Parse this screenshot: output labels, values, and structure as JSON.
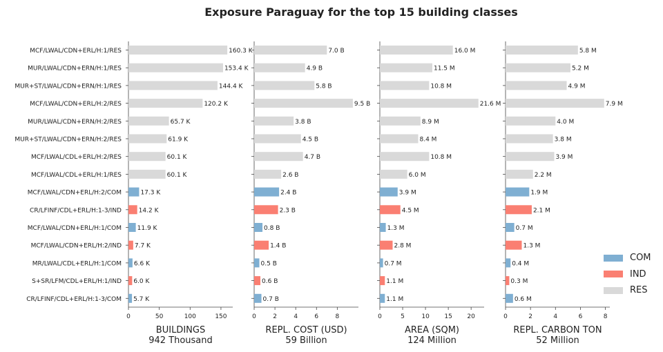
{
  "chart_data": {
    "type": "bar",
    "orientation": "horizontal",
    "title": "Exposure Paraguay for the top 15 building classes",
    "categories": [
      "MCF/LWAL/CDN+ERL/H:1/RES",
      "MUR/LWAL/CDN+ERN/H:1/RES",
      "MUR+ST/LWAL/CDN+ERN/H:1/RES",
      "MCF/LWAL/CDN+ERL/H:2/RES",
      "MUR/LWAL/CDN+ERN/H:2/RES",
      "MUR+ST/LWAL/CDN+ERN/H:2/RES",
      "MCF/LWAL/CDL+ERL/H:2/RES",
      "MCF/LWAL/CDL+ERL/H:1/RES",
      "MCF/LWAL/CDN+ERL/H:2/COM",
      "CR/LFINF/CDL+ERL/H:1-3/IND",
      "MCF/LWAL/CDN+ERL/H:1/COM",
      "MCF/LWAL/CDN+ERL/H:2/IND",
      "MR/LWAL/CDL+ERL/H:1/COM",
      "S+SR/LFM/CDL+ERL/H:1/IND",
      "CR/LFINF/CDL+ERL/H:1-3/COM"
    ],
    "occupancy": [
      "RES",
      "RES",
      "RES",
      "RES",
      "RES",
      "RES",
      "RES",
      "RES",
      "COM",
      "IND",
      "COM",
      "IND",
      "COM",
      "IND",
      "COM"
    ],
    "colors": {
      "COM": "#7fafd2",
      "IND": "#fa7f72",
      "RES": "#d9d9d9"
    },
    "panels": [
      {
        "xlabel": "BUILDINGS",
        "total": "942 Thousand",
        "xlim": [
          0,
          168
        ],
        "ticks": [
          0,
          50,
          100,
          150
        ],
        "values": [
          160.3,
          153.4,
          144.4,
          120.2,
          65.7,
          61.9,
          60.1,
          60.1,
          17.3,
          14.2,
          11.9,
          7.7,
          6.6,
          6.0,
          5.7
        ],
        "labels": [
          "160.3 K",
          "153.4 K",
          "144.4 K",
          "120.2 K",
          "65.7 K",
          "61.9 K",
          "60.1 K",
          "60.1 K",
          "17.3 K",
          "14.2 K",
          "11.9 K",
          "7.7 K",
          "6.6 K",
          "6.0 K",
          "5.7 K"
        ]
      },
      {
        "xlabel": "REPL. COST (USD)",
        "total": "59 Billion",
        "xlim": [
          0,
          9.97
        ],
        "ticks": [
          0,
          2,
          4,
          6,
          8
        ],
        "values": [
          7.0,
          4.9,
          5.8,
          9.5,
          3.8,
          4.5,
          4.7,
          2.6,
          2.4,
          2.3,
          0.8,
          1.4,
          0.5,
          0.6,
          0.7
        ],
        "labels": [
          "7.0 B",
          "4.9 B",
          "5.8 B",
          "9.5 B",
          "3.8 B",
          "4.5 B",
          "4.7 B",
          "2.6 B",
          "2.4 B",
          "2.3 B",
          "0.8 B",
          "1.4 B",
          "0.5 B",
          "0.6 B",
          "0.7 B"
        ]
      },
      {
        "xlabel": "AREA (SQM)",
        "total": "124 Million",
        "xlim": [
          0,
          22.7
        ],
        "ticks": [
          0,
          5,
          10,
          15,
          20
        ],
        "values": [
          16.0,
          11.5,
          10.8,
          21.6,
          8.9,
          8.4,
          10.8,
          6.0,
          3.9,
          4.5,
          1.3,
          2.8,
          0.7,
          1.1,
          1.1
        ],
        "labels": [
          "16.0 M",
          "11.5 M",
          "10.8 M",
          "21.6 M",
          "8.9 M",
          "8.4 M",
          "10.8 M",
          "6.0 M",
          "3.9 M",
          "4.5 M",
          "1.3 M",
          "2.8 M",
          "0.7 M",
          "1.1 M",
          "1.1 M"
        ]
      },
      {
        "xlabel": "REPL. CARBON TON",
        "total": "52 Million",
        "xlim": [
          0,
          8.3
        ],
        "ticks": [
          0,
          2,
          4,
          6,
          8
        ],
        "values": [
          5.8,
          5.2,
          4.9,
          7.9,
          4.0,
          3.8,
          3.9,
          2.2,
          1.9,
          2.1,
          0.7,
          1.3,
          0.4,
          0.3,
          0.6
        ],
        "labels": [
          "5.8 M",
          "5.2 M",
          "4.9 M",
          "7.9 M",
          "4.0 M",
          "3.8 M",
          "3.9 M",
          "2.2 M",
          "1.9 M",
          "2.1 M",
          "0.7 M",
          "1.3 M",
          "0.4 M",
          "0.3 M",
          "0.6 M"
        ]
      }
    ],
    "legend": {
      "position": "right",
      "entries": [
        "COM",
        "IND",
        "RES"
      ]
    }
  }
}
